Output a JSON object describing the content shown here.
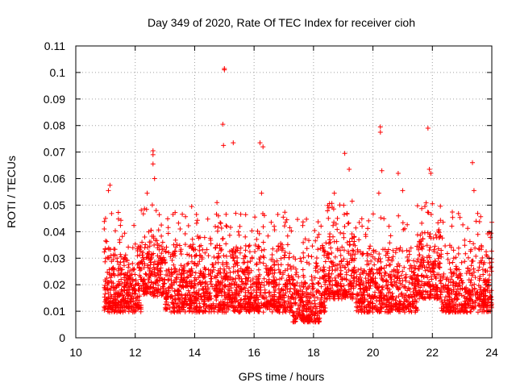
{
  "chart_data": {
    "type": "scatter",
    "title": "Day 349 of 2020, Rate Of TEC Index for receiver cioh",
    "xlabel": "GPS time / hours",
    "ylabel": "ROTI / TECUs",
    "xlim": [
      10,
      24
    ],
    "ylim": [
      0,
      0.11
    ],
    "x_ticks": [
      10,
      12,
      14,
      16,
      18,
      20,
      22,
      24
    ],
    "x_tick_labels": [
      "10",
      "12",
      "14",
      "16",
      "18",
      "20",
      "22",
      "24"
    ],
    "y_ticks": [
      0,
      0.01,
      0.02,
      0.03,
      0.04,
      0.05,
      0.06,
      0.07,
      0.08,
      0.09,
      0.1,
      0.11
    ],
    "y_tick_labels": [
      "0",
      "0.01",
      "0.02",
      "0.03",
      "0.04",
      "0.05",
      "0.06",
      "0.07",
      "0.08",
      "0.09",
      "0.1",
      "0.11"
    ],
    "grid": true,
    "legend": "none",
    "marker": "+",
    "color": "#ff0000",
    "data_x_range": [
      10.95,
      24.0
    ],
    "baseline_band": [
      0.006,
      0.035
    ],
    "series": [
      {
        "name": "ROTI",
        "x": [
          15.0,
          15.0,
          14.95,
          14.97,
          20.25,
          20.25,
          21.85,
          12.6,
          12.6,
          16.2,
          16.3,
          19.05,
          15.3,
          12.65,
          12.4,
          11.15,
          11.1,
          20.3,
          23.35,
          21.9,
          21.95,
          20.85,
          16.25,
          12.6,
          19.2,
          13.9,
          14.75,
          21.0,
          23.4,
          19.3,
          18.7,
          22.0,
          16.8,
          17.1,
          24.0,
          20.2,
          17.2,
          11.0,
          18.5
        ],
        "y": [
          0.101,
          0.1015,
          0.0805,
          0.0725,
          0.0795,
          0.0775,
          0.079,
          0.0705,
          0.069,
          0.0735,
          0.072,
          0.0695,
          0.0735,
          0.06,
          0.0545,
          0.0575,
          0.0555,
          0.063,
          0.066,
          0.0635,
          0.062,
          0.062,
          0.0545,
          0.0655,
          0.0635,
          0.0495,
          0.051,
          0.0555,
          0.0555,
          0.0515,
          0.0545,
          0.0505,
          0.0465,
          0.0445,
          0.0435,
          0.0545,
          0.0415,
          0.045,
          0.045
        ],
        "summary_points_note": "Dense cloud of several thousand '+' markers between 0.006 and 0.035 TECUs from 10.95 h to 24 h; only the notable outliers are listed individually."
      }
    ]
  }
}
